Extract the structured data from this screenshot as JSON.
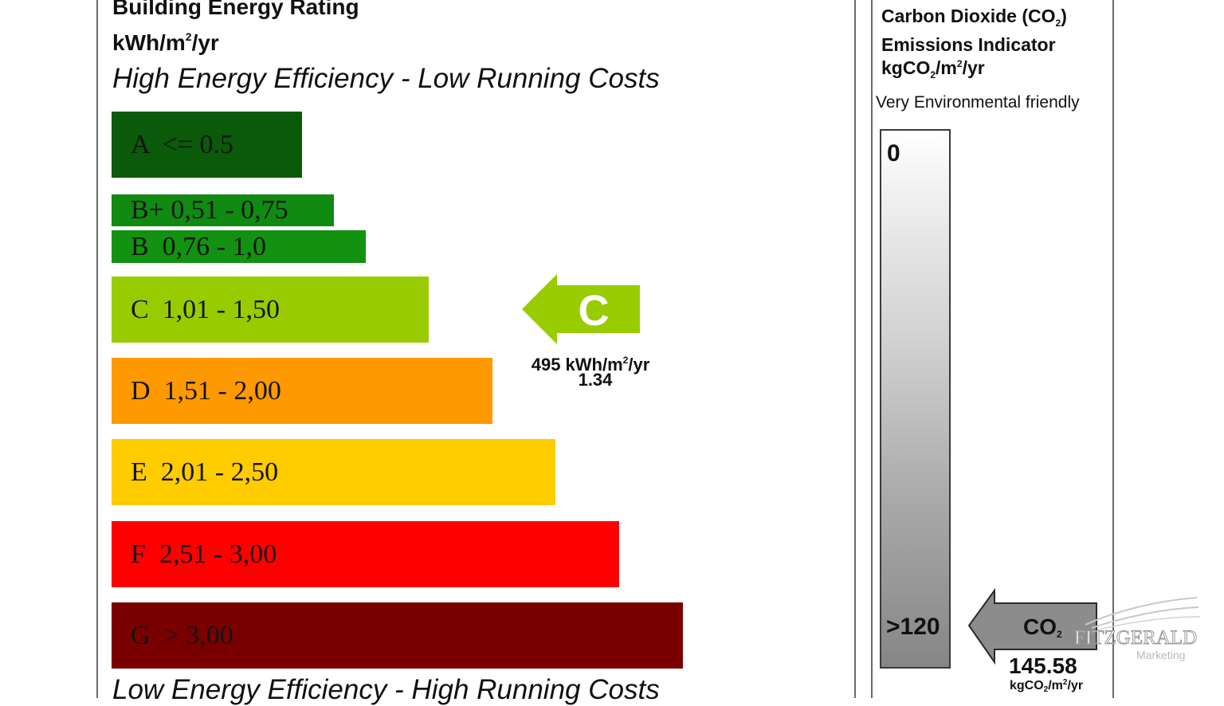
{
  "header": {
    "title": "Building Energy Rating",
    "units_prefix": "kWh/m",
    "units_sup": "2",
    "units_suffix": "/yr"
  },
  "captions": {
    "top": "High Energy Efficiency - Low Running Costs",
    "bottom": "Low Energy Efficiency - High Running Costs"
  },
  "bands": [
    {
      "label": "A  <= 0.5",
      "color": "#0a5a0a"
    },
    {
      "label": "B+ 0,51 - 0,75",
      "color": "#118a12"
    },
    {
      "label": "B  0,76 - 1,0",
      "color": "#139212"
    },
    {
      "label": "C  1,01 - 1,50",
      "color": "#99cc00"
    },
    {
      "label": "D  1,51 - 2,00",
      "color": "#ff9900"
    },
    {
      "label": "E  2,01 - 2,50",
      "color": "#ffcc00"
    },
    {
      "label": "F  2,51 - 3,00",
      "color": "#ff0000"
    },
    {
      "label": "G  > 3,00",
      "color": "#7a0000"
    }
  ],
  "current_rating": {
    "letter": "C",
    "color": "#99cc00",
    "value_prefix": "495 kWh/m",
    "value_sup": "2",
    "value_suffix": "/yr",
    "number": "1.34"
  },
  "co2": {
    "title_line1_prefix": "Carbon Dioxide (CO",
    "title_line1_sub": "2",
    "title_line1_suffix": ")",
    "title_line2": "Emissions Indicator",
    "title_line3_prefix": "kgCO",
    "title_line3_sub": "2",
    "title_line3_mid": "/m",
    "title_line3_sup": "2",
    "title_line3_suffix": "/yr",
    "env_label": "Very Environmental friendly",
    "scale_top": "0",
    "scale_bottom": ">120",
    "arrow_label": "CO",
    "arrow_label_sub": "2",
    "value": "145.58",
    "unit_prefix": "kgCO",
    "unit_sub": "2",
    "unit_mid": "/m",
    "unit_sup": "2",
    "unit_suffix": "/yr",
    "arrow_color": "#8c8c8c"
  },
  "watermark": {
    "name": "FITZGERALD",
    "sub": "Marketing"
  }
}
